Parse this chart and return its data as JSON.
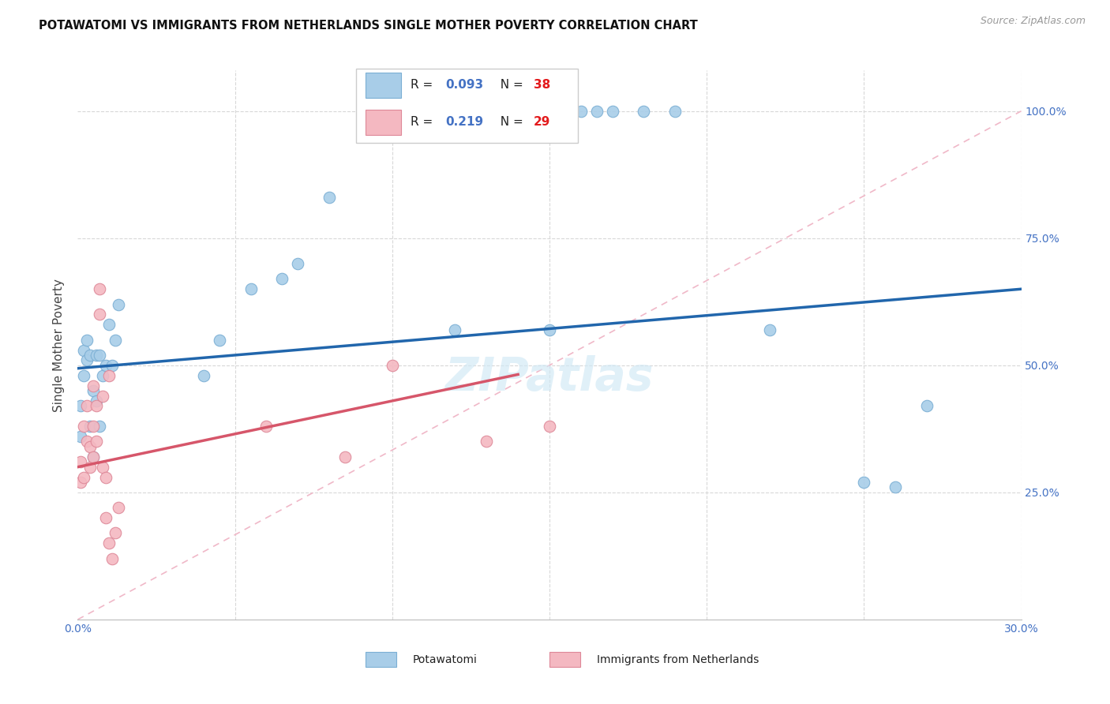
{
  "title": "POTAWATOMI VS IMMIGRANTS FROM NETHERLANDS SINGLE MOTHER POVERTY CORRELATION CHART",
  "source": "Source: ZipAtlas.com",
  "ylabel": "Single Mother Poverty",
  "blue_scatter_x": [
    0.001,
    0.001,
    0.002,
    0.002,
    0.003,
    0.003,
    0.004,
    0.004,
    0.005,
    0.005,
    0.006,
    0.006,
    0.007,
    0.007,
    0.008,
    0.009,
    0.01,
    0.011,
    0.012,
    0.013,
    0.04,
    0.045,
    0.055,
    0.065,
    0.07,
    0.08,
    0.12,
    0.15,
    0.155,
    0.16,
    0.165,
    0.17,
    0.18,
    0.19,
    0.22,
    0.25,
    0.26,
    0.27
  ],
  "blue_scatter_y": [
    0.36,
    0.42,
    0.53,
    0.48,
    0.51,
    0.55,
    0.52,
    0.38,
    0.45,
    0.32,
    0.52,
    0.43,
    0.52,
    0.38,
    0.48,
    0.5,
    0.58,
    0.5,
    0.55,
    0.62,
    0.48,
    0.55,
    0.65,
    0.67,
    0.7,
    0.83,
    0.57,
    0.57,
    1.0,
    1.0,
    1.0,
    1.0,
    1.0,
    1.0,
    0.57,
    0.27,
    0.26,
    0.42
  ],
  "pink_scatter_x": [
    0.001,
    0.001,
    0.002,
    0.002,
    0.003,
    0.003,
    0.004,
    0.004,
    0.005,
    0.005,
    0.005,
    0.006,
    0.006,
    0.007,
    0.007,
    0.008,
    0.008,
    0.009,
    0.009,
    0.01,
    0.01,
    0.011,
    0.012,
    0.013,
    0.06,
    0.085,
    0.1,
    0.13,
    0.15
  ],
  "pink_scatter_y": [
    0.31,
    0.27,
    0.38,
    0.28,
    0.35,
    0.42,
    0.34,
    0.3,
    0.38,
    0.46,
    0.32,
    0.42,
    0.35,
    0.65,
    0.6,
    0.44,
    0.3,
    0.28,
    0.2,
    0.48,
    0.15,
    0.12,
    0.17,
    0.22,
    0.38,
    0.32,
    0.5,
    0.35,
    0.38
  ],
  "blue_R": "0.093",
  "blue_N": "38",
  "pink_R": "0.219",
  "pink_N": "29",
  "blue_scatter_color": "#a8cde8",
  "blue_scatter_edge": "#7bafd4",
  "pink_scatter_color": "#f4b8c1",
  "pink_scatter_edge": "#de8898",
  "blue_line_color": "#2166ac",
  "pink_line_color": "#d6566a",
  "diag_line_color": "#f0b8c8",
  "grid_color": "#d8d8d8",
  "axis_label_color": "#4472c4",
  "watermark_text": "ZIPatlas",
  "watermark_color": "#d0e8f5",
  "legend_label_blue": "Potawatomi",
  "legend_label_pink": "Immigrants from Netherlands",
  "blue_line_intercept": 0.494,
  "blue_line_slope": 0.52,
  "pink_line_intercept": 0.3,
  "pink_line_slope": 1.3
}
